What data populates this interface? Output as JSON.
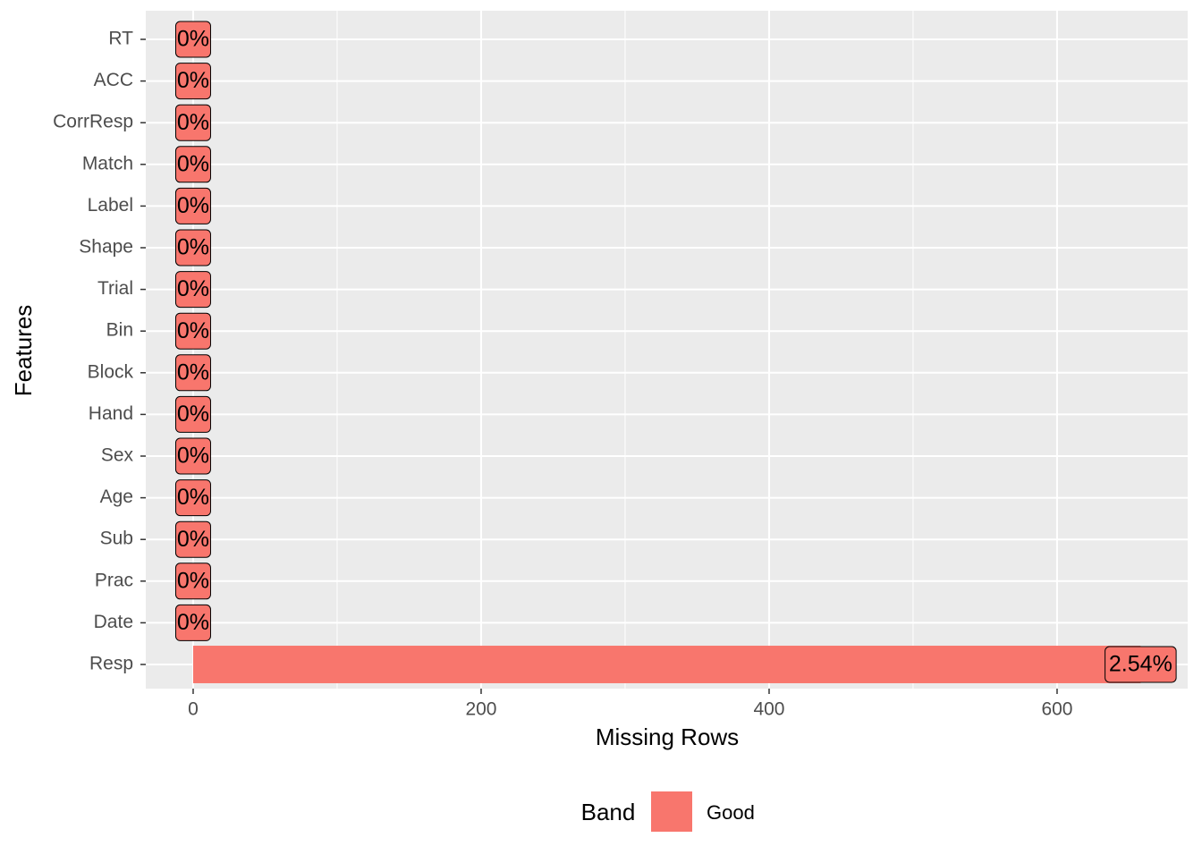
{
  "chart_data": {
    "type": "bar",
    "orientation": "horizontal",
    "x_label": "Missing Rows",
    "y_label": "Features",
    "categories": [
      "RT",
      "ACC",
      "CorrResp",
      "Match",
      "Label",
      "Shape",
      "Trial",
      "Bin",
      "Block",
      "Hand",
      "Sex",
      "Age",
      "Sub",
      "Prac",
      "Date",
      "Resp"
    ],
    "values": [
      0,
      0,
      0,
      0,
      0,
      0,
      0,
      0,
      0,
      0,
      0,
      0,
      0,
      0,
      0,
      658
    ],
    "percent_labels": [
      "0%",
      "0%",
      "0%",
      "0%",
      "0%",
      "0%",
      "0%",
      "0%",
      "0%",
      "0%",
      "0%",
      "0%",
      "0%",
      "0%",
      "0%",
      "2.54%"
    ],
    "color": "#F8766D",
    "legend_title": "Band",
    "legend_entry": "Good",
    "legend_position": "bottom",
    "xlim": [
      -32.9,
      690.7
    ],
    "xticks": [
      0,
      200,
      400,
      600
    ],
    "xminor": [
      100,
      300,
      500
    ],
    "grid": true
  }
}
